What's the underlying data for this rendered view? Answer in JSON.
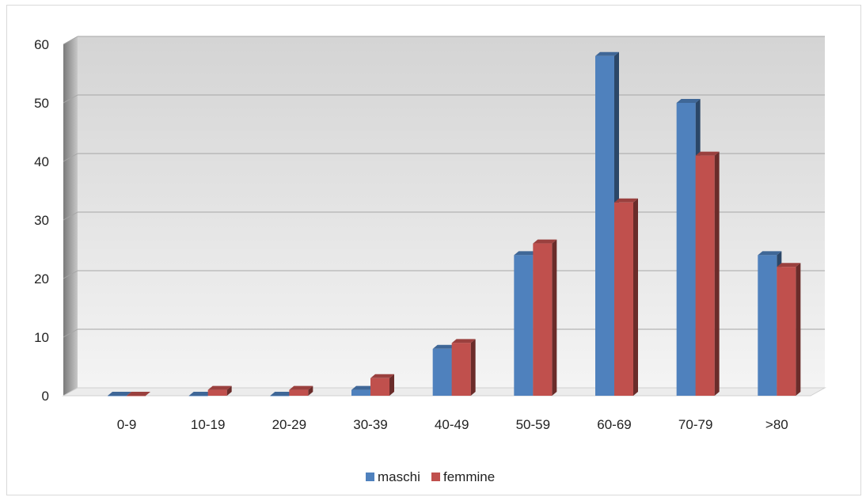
{
  "chart_data": {
    "type": "bar",
    "title": "",
    "xlabel": "",
    "ylabel": "",
    "categories": [
      "0-9",
      "10-19",
      "20-29",
      "30-39",
      "40-49",
      "50-59",
      "60-69",
      "70-79",
      ">80"
    ],
    "ylim": [
      0,
      60
    ],
    "yticks": [
      0,
      10,
      20,
      30,
      40,
      50,
      60
    ],
    "grid": true,
    "legend_position": "bottom",
    "series": [
      {
        "name": "maschi",
        "color": "#4f81bd",
        "values": [
          0,
          0,
          0,
          1,
          8,
          24,
          58,
          50,
          24
        ]
      },
      {
        "name": "femmine",
        "color": "#c0504d",
        "values": [
          0,
          1,
          1,
          3,
          9,
          26,
          33,
          41,
          22
        ]
      }
    ]
  }
}
